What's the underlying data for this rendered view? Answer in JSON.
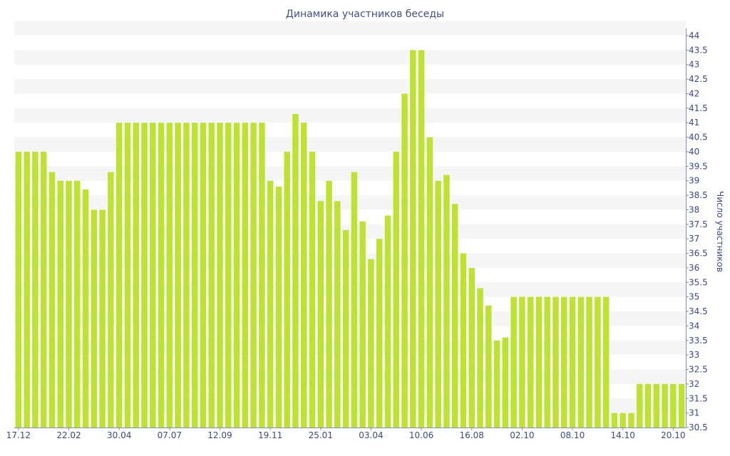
{
  "chart_data": {
    "type": "bar",
    "title": "Динамика участников беседы",
    "xlabel": "",
    "ylabel": "Число участников",
    "ylim": [
      30.5,
      44
    ],
    "y_axis_side": "right",
    "grid": "alternating horizontal bands",
    "bar_color": "#bde232",
    "band_color": "#f5f5f5",
    "text_color": "#3a4a8a",
    "y_ticks": [
      "30.5",
      "31",
      "31.5",
      "32",
      "32.5",
      "33",
      "33.5",
      "34",
      "34.5",
      "35",
      "35.5",
      "36",
      "36.5",
      "37",
      "37.5",
      "38",
      "38.5",
      "39",
      "39.5",
      "40",
      "40.5",
      "41",
      "41.5",
      "42",
      "42.5",
      "43",
      "43.5",
      "44"
    ],
    "x_tick_labels": [
      {
        "index": 0,
        "label": "17.12"
      },
      {
        "index": 6,
        "label": "22.02"
      },
      {
        "index": 12,
        "label": "30.04"
      },
      {
        "index": 18,
        "label": "07.07"
      },
      {
        "index": 24,
        "label": "12.09"
      },
      {
        "index": 30,
        "label": "19.11"
      },
      {
        "index": 36,
        "label": "25.01"
      },
      {
        "index": 42,
        "label": "03.04"
      },
      {
        "index": 48,
        "label": "10.06"
      },
      {
        "index": 54,
        "label": "16.08"
      },
      {
        "index": 60,
        "label": "02.10"
      },
      {
        "index": 66,
        "label": "08.10"
      },
      {
        "index": 72,
        "label": "14.10"
      },
      {
        "index": 78,
        "label": "20.10"
      }
    ],
    "values": [
      40,
      40,
      40,
      40,
      39.3,
      39,
      39,
      39,
      38.7,
      38,
      38,
      39.3,
      41,
      41,
      41,
      41,
      41,
      41,
      41,
      41,
      41,
      41,
      41,
      41,
      41,
      41,
      41,
      41,
      41,
      41,
      39,
      38.8,
      40,
      41.3,
      41,
      40,
      38.3,
      39,
      38.3,
      37.3,
      39.3,
      37.6,
      36.3,
      37,
      37.8,
      40,
      42,
      43.5,
      43.5,
      40.5,
      39,
      39.2,
      38.2,
      36.5,
      36,
      35.3,
      34.7,
      33.5,
      33.6,
      35,
      35,
      35,
      35,
      35,
      35,
      35,
      35,
      35,
      35,
      35,
      35,
      31,
      31,
      31,
      32,
      32,
      32,
      32,
      32,
      32
    ]
  }
}
